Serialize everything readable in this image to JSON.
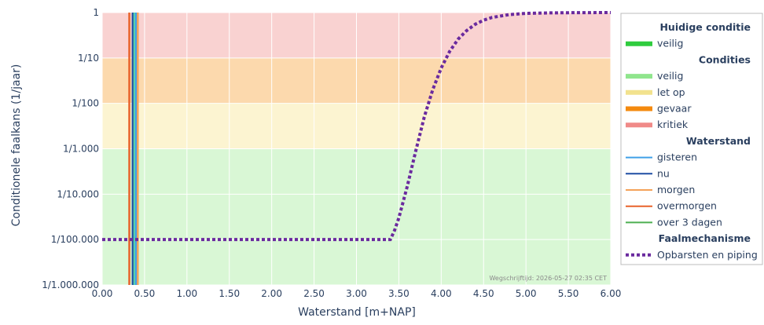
{
  "chart_data": {
    "type": "line",
    "xlabel": "Waterstand [m+NAP]",
    "ylabel": "Conditionele faalkans (1/jaar)",
    "y_scale": "log",
    "xlim": [
      0,
      6
    ],
    "ylim": [
      1e-06,
      1
    ],
    "x_ticks": [
      0,
      0.5,
      1,
      1.5,
      2,
      2.5,
      3,
      3.5,
      4,
      4.5,
      5,
      5.5,
      6
    ],
    "x_tick_labels": [
      "0.00",
      "0.50",
      "1.00",
      "1.50",
      "2.00",
      "2.50",
      "3.00",
      "3.50",
      "4.00",
      "4.50",
      "5.00",
      "5.50",
      "6.00"
    ],
    "y_ticks": [
      1,
      0.1,
      0.01,
      0.001,
      0.0001,
      1e-05,
      1e-06
    ],
    "y_tick_labels": [
      "1",
      "1/10",
      "1/100",
      "1/1.000",
      "1/10.000",
      "1/100.000",
      "1/1.000.000"
    ],
    "watermark": "Wegschrijftijd: 2026-05-27 02:35 CET",
    "bands": [
      {
        "label": "veilig",
        "from": 1e-06,
        "to": 0.001,
        "color": "#d9f7d5"
      },
      {
        "label": "let op",
        "from": 0.001,
        "to": 0.01,
        "color": "#fcf4d1"
      },
      {
        "label": "gevaar",
        "from": 0.01,
        "to": 0.1,
        "color": "#fcd9ad"
      },
      {
        "label": "kritiek",
        "from": 0.1,
        "to": 1,
        "color": "#f9d2d1"
      }
    ],
    "vlines": [
      {
        "name": "overmorgen",
        "x": 0.32,
        "color": "#e8622a"
      },
      {
        "name": "nu",
        "x": 0.36,
        "color": "#1f4ea3"
      },
      {
        "name": "veilig",
        "x": 0.38,
        "color": "#5ad1a8"
      },
      {
        "name": "gisteren",
        "x": 0.4,
        "color": "#3fa0e8"
      },
      {
        "name": "morgen",
        "x": 0.42,
        "color": "#f4a259"
      }
    ],
    "series": [
      {
        "name": "Opbarsten en piping",
        "color": "#6a2a9e",
        "dash": "dot",
        "x": [
          0,
          3.4,
          3.45,
          3.5,
          3.6,
          3.7,
          3.8,
          3.9,
          4.0,
          4.1,
          4.2,
          4.3,
          4.4,
          4.5,
          4.6,
          4.8,
          5.0,
          5.3,
          5.6,
          6.0
        ],
        "y": [
          1e-05,
          1e-05,
          1.6e-05,
          3e-05,
          0.00015,
          0.0009,
          0.005,
          0.02,
          0.06,
          0.14,
          0.26,
          0.4,
          0.55,
          0.68,
          0.78,
          0.9,
          0.96,
          0.985,
          0.995,
          1.0
        ]
      }
    ]
  },
  "legend": {
    "groups": [
      {
        "title": "Huidige conditie",
        "items": [
          {
            "label": "veilig",
            "kind": "thick",
            "color": "#2fcc3e"
          }
        ]
      },
      {
        "title": "Condities",
        "items": [
          {
            "label": "veilig",
            "kind": "thick",
            "color": "#90e58d"
          },
          {
            "label": "let op",
            "kind": "thick",
            "color": "#f2e28e"
          },
          {
            "label": "gevaar",
            "kind": "thick",
            "color": "#f48a0e"
          },
          {
            "label": "kritiek",
            "kind": "thick",
            "color": "#f08a88"
          }
        ]
      },
      {
        "title": "Waterstand",
        "items": [
          {
            "label": "gisteren",
            "kind": "line",
            "color": "#3fa0e8"
          },
          {
            "label": "nu",
            "kind": "line",
            "color": "#1f4ea3"
          },
          {
            "label": "morgen",
            "kind": "line",
            "color": "#f4a259"
          },
          {
            "label": "overmorgen",
            "kind": "line",
            "color": "#e8622a"
          },
          {
            "label": "over 3 dagen",
            "kind": "line",
            "color": "#4caf50"
          }
        ]
      },
      {
        "title": "Faalmechanisme",
        "items": [
          {
            "label": "Opbarsten en piping",
            "kind": "dots",
            "color": "#6a2a9e"
          }
        ]
      }
    ]
  }
}
